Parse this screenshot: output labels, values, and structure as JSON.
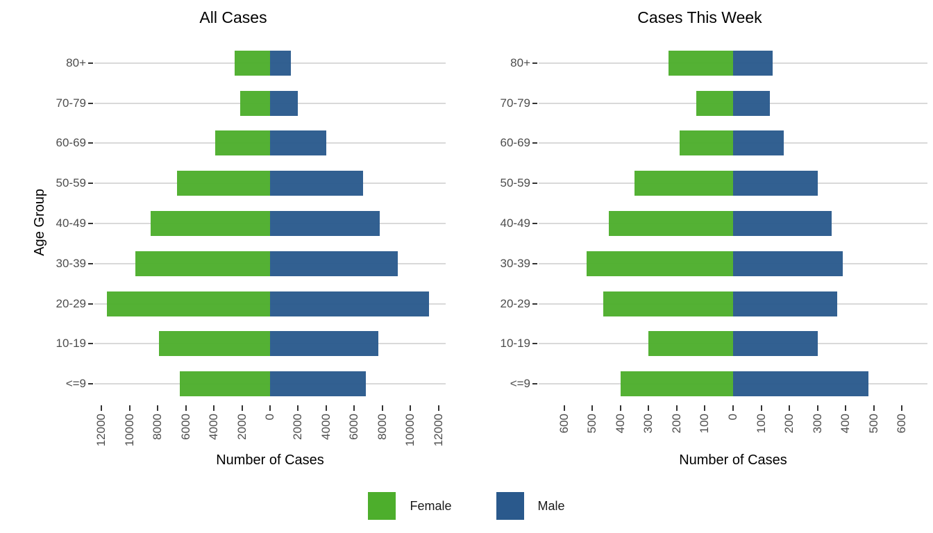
{
  "legend": {
    "items": [
      {
        "label": "Female",
        "color": "#4dae2c"
      },
      {
        "label": "Male",
        "color": "#2a598c"
      }
    ]
  },
  "colors": {
    "female": "#4dae2c",
    "male": "#2a598c",
    "gridline": "#d9d9d9",
    "tick": "#333333",
    "tick_label": "#4d4d4d"
  },
  "chart_data": [
    {
      "type": "bar",
      "variant": "population-pyramid",
      "title": "All Cases",
      "xlabel": "Number of Cases",
      "ylabel": "Age Group",
      "legend_position": "bottom-shared",
      "grid": "horizontal-only",
      "categories_top_to_bottom": [
        "80+",
        "70-79",
        "60-69",
        "50-59",
        "40-49",
        "30-39",
        "20-29",
        "10-19",
        "<=9"
      ],
      "series": [
        {
          "name": "Female",
          "side": "left",
          "values": [
            2500,
            2100,
            3900,
            6600,
            8500,
            9600,
            11600,
            7900,
            6400
          ]
        },
        {
          "name": "Male",
          "side": "right",
          "values": [
            1500,
            2000,
            4000,
            6600,
            7800,
            9100,
            11300,
            7700,
            6800
          ]
        }
      ],
      "x_tick_values": [
        -12000,
        -10000,
        -8000,
        -6000,
        -4000,
        -2000,
        0,
        2000,
        4000,
        6000,
        8000,
        10000,
        12000
      ],
      "x_tick_labels": [
        "12000",
        "10000",
        "8000",
        "6000",
        "4000",
        "2000",
        "0",
        "2000",
        "4000",
        "6000",
        "8000",
        "10000",
        "12000"
      ],
      "xlim": [
        -12500,
        12500
      ]
    },
    {
      "type": "bar",
      "variant": "population-pyramid",
      "title": "Cases This Week",
      "xlabel": "Number of Cases",
      "ylabel": "",
      "legend_position": "bottom-shared",
      "grid": "horizontal-only",
      "categories_top_to_bottom": [
        "80+",
        "70-79",
        "60-69",
        "50-59",
        "40-49",
        "30-39",
        "20-29",
        "10-19",
        "<=9"
      ],
      "series": [
        {
          "name": "Female",
          "side": "left",
          "values": [
            230,
            130,
            190,
            350,
            440,
            520,
            460,
            300,
            400
          ]
        },
        {
          "name": "Male",
          "side": "right",
          "values": [
            140,
            130,
            180,
            300,
            350,
            390,
            370,
            300,
            480
          ]
        }
      ],
      "x_tick_values": [
        -600,
        -500,
        -400,
        -300,
        -200,
        -100,
        0,
        100,
        200,
        300,
        400,
        500,
        600
      ],
      "x_tick_labels": [
        "600",
        "500",
        "400",
        "300",
        "200",
        "100",
        "0",
        "100",
        "200",
        "300",
        "400",
        "500",
        "600"
      ],
      "xlim": [
        -690,
        690
      ]
    }
  ]
}
